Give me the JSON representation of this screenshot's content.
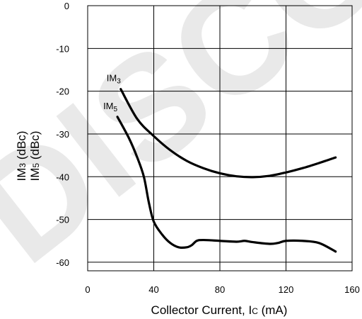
{
  "watermark_text": "DISCO",
  "chart_data": {
    "type": "line",
    "xlabel": {
      "main": "Collector Current, I",
      "sub": "C",
      "unit": " (mA)"
    },
    "ylabel": {
      "line1": {
        "main": "IM",
        "sub": "3",
        "unit": " (dBc)"
      },
      "line2": {
        "main": "IM",
        "sub": "5",
        "unit": " (dBc)"
      }
    },
    "xlim": [
      0,
      160
    ],
    "ylim": [
      -62,
      0
    ],
    "xticks": [
      0,
      40,
      80,
      120,
      160
    ],
    "xtick_labels": [
      "0",
      "40",
      "80",
      "120",
      "160"
    ],
    "yticks": [
      0,
      -10,
      -20,
      -30,
      -40,
      -50,
      -60
    ],
    "ytick_labels": [
      "0",
      "-10",
      "-20",
      "-30",
      "-40",
      "-50",
      "-60"
    ],
    "grid": true,
    "series": [
      {
        "name": {
          "main": "IM",
          "sub": "3"
        },
        "color": "#000000",
        "x": [
          20,
          30,
          40,
          50,
          60,
          70,
          80,
          90,
          100,
          110,
          120,
          130,
          140,
          150
        ],
        "y": [
          -19.5,
          -26.5,
          -30.5,
          -33.8,
          -36.3,
          -38.0,
          -39.2,
          -39.9,
          -40.1,
          -39.8,
          -39.0,
          -38.0,
          -36.8,
          -35.5
        ]
      },
      {
        "name": {
          "main": "IM",
          "sub": "5"
        },
        "color": "#000000",
        "x": [
          18,
          25,
          30,
          34,
          37,
          40,
          45,
          50,
          55,
          60,
          63,
          66,
          70,
          80,
          90,
          95,
          100,
          110,
          115,
          120,
          130,
          140,
          150
        ],
        "y": [
          -26,
          -31,
          -35.5,
          -40,
          -46,
          -50.5,
          -53.5,
          -55.5,
          -56.5,
          -56.5,
          -56,
          -55,
          -54.8,
          -55,
          -55.2,
          -55,
          -55.3,
          -55.7,
          -55.5,
          -55,
          -55,
          -55.5,
          -57.5
        ]
      }
    ]
  }
}
